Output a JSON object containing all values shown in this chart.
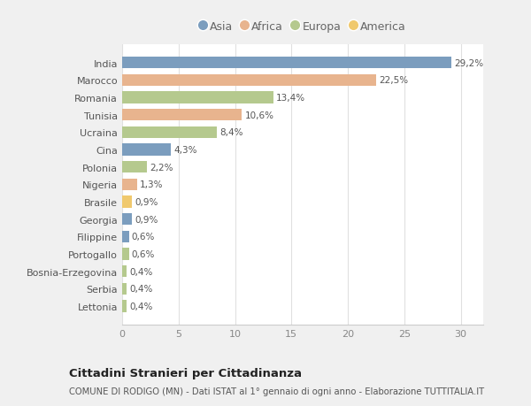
{
  "countries": [
    "Lettonia",
    "Serbia",
    "Bosnia-Erzegovina",
    "Portogallo",
    "Filippine",
    "Georgia",
    "Brasile",
    "Nigeria",
    "Polonia",
    "Cina",
    "Ucraina",
    "Tunisia",
    "Romania",
    "Marocco",
    "India"
  ],
  "values": [
    0.4,
    0.4,
    0.4,
    0.6,
    0.6,
    0.9,
    0.9,
    1.3,
    2.2,
    4.3,
    8.4,
    10.6,
    13.4,
    22.5,
    29.2
  ],
  "labels": [
    "0,4%",
    "0,4%",
    "0,4%",
    "0,6%",
    "0,6%",
    "0,9%",
    "0,9%",
    "1,3%",
    "2,2%",
    "4,3%",
    "8,4%",
    "10,6%",
    "13,4%",
    "22,5%",
    "29,2%"
  ],
  "continents": [
    "Europa",
    "Europa",
    "Europa",
    "Europa",
    "Asia",
    "Asia",
    "America",
    "Africa",
    "Europa",
    "Asia",
    "Europa",
    "Africa",
    "Europa",
    "Africa",
    "Asia"
  ],
  "colors": {
    "Asia": "#7b9dbe",
    "Africa": "#e8b48e",
    "Europa": "#b5c98e",
    "America": "#f0c96e"
  },
  "legend_order": [
    "Asia",
    "Africa",
    "Europa",
    "America"
  ],
  "title": "Cittadini Stranieri per Cittadinanza",
  "subtitle": "COMUNE DI RODIGO (MN) - Dati ISTAT al 1° gennaio di ogni anno - Elaborazione TUTTITALIA.IT",
  "xlim": [
    0,
    32
  ],
  "xticks": [
    0,
    5,
    10,
    15,
    20,
    25,
    30
  ],
  "background_color": "#f0f0f0",
  "plot_background": "#ffffff"
}
